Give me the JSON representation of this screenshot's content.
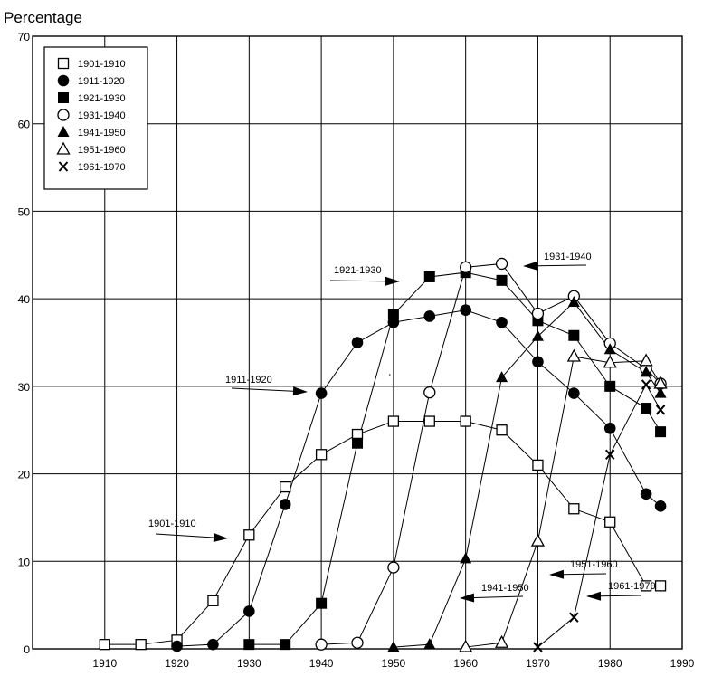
{
  "chart_data": {
    "type": "line",
    "title": "",
    "ylabel": "Percentage",
    "xlabel": "",
    "xlim": [
      1900,
      1990
    ],
    "ylim": [
      0,
      70
    ],
    "xticks": [
      1910,
      1920,
      1930,
      1940,
      1950,
      1960,
      1970,
      1980,
      1990
    ],
    "yticks": [
      0,
      10,
      20,
      30,
      40,
      50,
      60,
      70
    ],
    "grid": true,
    "legend_position": "top-left",
    "series": [
      {
        "name": "1901-1910",
        "marker": "square-open",
        "x": [
          1910,
          1915,
          1920,
          1925,
          1930,
          1935,
          1940,
          1945,
          1950,
          1955,
          1960,
          1965,
          1970,
          1975,
          1980,
          1985,
          1987
        ],
        "y": [
          0.5,
          0.5,
          1,
          5.5,
          13,
          18.5,
          22.2,
          24.5,
          26,
          26,
          26,
          25,
          21,
          16,
          14.5,
          7.2,
          7.2
        ]
      },
      {
        "name": "1911-1920",
        "marker": "circle-filled",
        "x": [
          1920,
          1925,
          1930,
          1935,
          1940,
          1945,
          1950,
          1955,
          1960,
          1965,
          1970,
          1975,
          1980,
          1985,
          1987
        ],
        "y": [
          0.3,
          0.5,
          4.3,
          16.5,
          29.2,
          35,
          37.3,
          38,
          38.7,
          37.3,
          32.8,
          29.2,
          25.2,
          17.7,
          16.3
        ]
      },
      {
        "name": "1921-1930",
        "marker": "square-filled",
        "x": [
          1930,
          1935,
          1940,
          1945,
          1950,
          1955,
          1960,
          1965,
          1970,
          1975,
          1980,
          1985,
          1987
        ],
        "y": [
          0.5,
          0.5,
          5.2,
          23.5,
          38.2,
          42.5,
          43,
          42.1,
          37.5,
          35.8,
          30,
          27.5,
          24.8
        ]
      },
      {
        "name": "1931-1940",
        "marker": "circle-open",
        "x": [
          1940,
          1945,
          1950,
          1955,
          1960,
          1965,
          1970,
          1975,
          1980,
          1985,
          1987
        ],
        "y": [
          0.5,
          0.7,
          9.3,
          29.3,
          43.6,
          44,
          38.3,
          40.3,
          34.9,
          32,
          30.3
        ]
      },
      {
        "name": "1941-1950",
        "marker": "triangle-filled",
        "x": [
          1950,
          1955,
          1960,
          1965,
          1970,
          1975,
          1980,
          1985,
          1987
        ],
        "y": [
          0.2,
          0.5,
          10.3,
          31,
          35.7,
          39.6,
          34.2,
          31.6,
          29.2
        ]
      },
      {
        "name": "1951-1960",
        "marker": "triangle-open",
        "x": [
          1960,
          1965,
          1970,
          1975,
          1980,
          1985,
          1987
        ],
        "y": [
          0.2,
          0.7,
          12.3,
          33.4,
          32.7,
          32.9,
          30.3
        ]
      },
      {
        "name": "1961-1970",
        "marker": "x",
        "x": [
          1970,
          1975,
          1980,
          1985,
          1987
        ],
        "y": [
          0.2,
          3.6,
          22.2,
          30.2,
          27.3
        ]
      }
    ],
    "annotations": [
      {
        "text": "1901-1910",
        "x": 1930,
        "y": 13
      },
      {
        "text": "1911-1920",
        "x": 1940,
        "y": 29.3
      },
      {
        "text": "1921-1930",
        "x": 1950,
        "y": 42.3
      },
      {
        "text": "1931-1940",
        "x": 1965,
        "y": 44
      },
      {
        "text": "1941-1950",
        "x": 1960,
        "y": 6
      },
      {
        "text": "1951-1960",
        "x": 1971,
        "y": 11.5
      },
      {
        "text": "1961-1970",
        "x": 1975,
        "y": 3.5
      }
    ],
    "stray_marks": [
      {
        "text": ",",
        "x": 1949.3,
        "y": 31.3
      }
    ]
  }
}
